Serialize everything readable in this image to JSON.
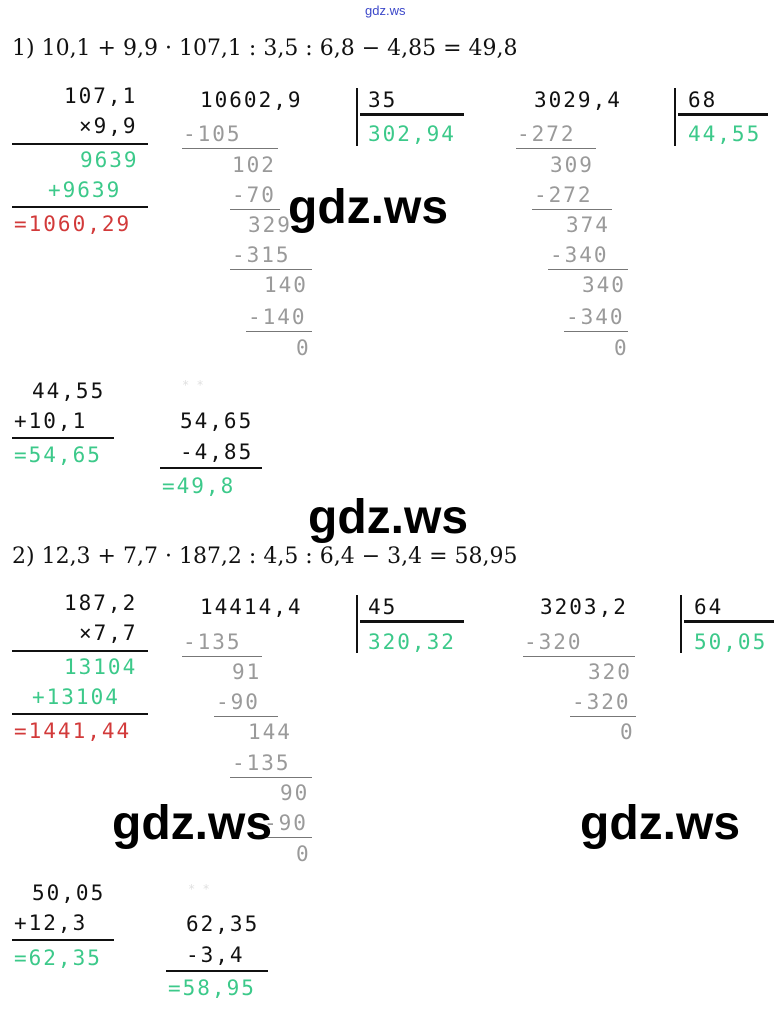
{
  "header": {
    "site": "gdz.ws"
  },
  "watermark": "gdz.ws",
  "task1": {
    "equation": "1) 10,1 + 9,9 · 107,1 : 3,5 : 6,8 − 4,85 = 49,8",
    "mult": {
      "a": "107,1",
      "b": "×9,9",
      "p1": "9639",
      "p2": "+9639",
      "result": "=1060,29"
    },
    "div1": {
      "dividend": "10602,9",
      "divisor": "35",
      "quotient": "302,94",
      "steps": [
        "-105",
        "102",
        "-70",
        "329",
        "-315",
        "140",
        "-140",
        "0"
      ]
    },
    "div2": {
      "dividend": "3029,4",
      "divisor": "68",
      "quotient": "44,55",
      "steps": [
        "-272",
        "309",
        "-272",
        "374",
        "-340",
        "340",
        "-340",
        "0"
      ]
    },
    "add": {
      "a": "44,55",
      "b": "+10,1",
      "result": "=54,65"
    },
    "sub": {
      "a": "54,65",
      "b": "-4,85",
      "result": "=49,8"
    }
  },
  "task2": {
    "equation": "2) 12,3 + 7,7 · 187,2 : 4,5 : 6,4 − 3,4 = 58,95",
    "mult": {
      "a": "187,2",
      "b": "×7,7",
      "p1": "13104",
      "p2": "+13104",
      "result": "=1441,44"
    },
    "div1": {
      "dividend": "14414,4",
      "divisor": "45",
      "quotient": "320,32",
      "steps": [
        "-135",
        "91",
        "-90",
        "144",
        "-135",
        "90",
        "-90",
        "0"
      ]
    },
    "div2": {
      "dividend": "3203,2",
      "divisor": "64",
      "quotient": "50,05",
      "steps": [
        "-320",
        "320",
        "-320",
        "0"
      ]
    },
    "add": {
      "a": "50,05",
      "b": "+12,3",
      "result": "=62,35"
    },
    "sub": {
      "a": "62,35",
      "b": "-3,4",
      "result": "=58,95"
    }
  }
}
